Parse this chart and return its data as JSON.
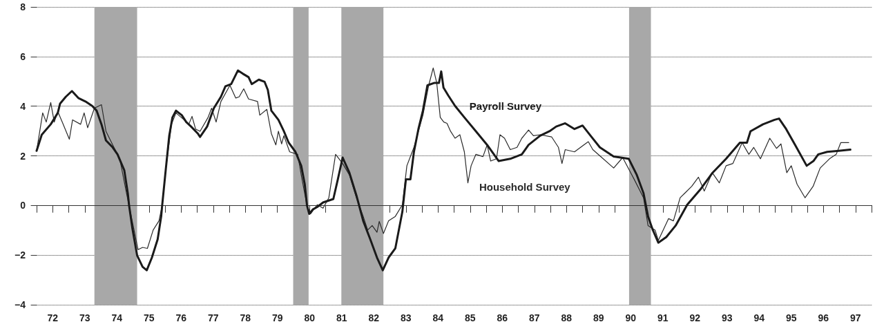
{
  "chart_data": {
    "type": "line",
    "xlim": [
      71.5,
      97.5
    ],
    "xticks": [
      {
        "value": 71.5,
        "label": null
      },
      72,
      {
        "value": 72.5,
        "label": null
      },
      73,
      {
        "value": 73.5,
        "label": null
      },
      74,
      {
        "value": 74.5,
        "label": null
      },
      75,
      {
        "value": 75.5,
        "label": null
      },
      76,
      {
        "value": 76.5,
        "label": null
      },
      77,
      {
        "value": 77.5,
        "label": null
      },
      78,
      {
        "value": 78.5,
        "label": null
      },
      79,
      {
        "value": 79.5,
        "label": null
      },
      80,
      {
        "value": 80.5,
        "label": null
      },
      81,
      {
        "value": 81.5,
        "label": null
      },
      82,
      {
        "value": 82.5,
        "label": null
      },
      83,
      {
        "value": 83.5,
        "label": null
      },
      84,
      {
        "value": 84.5,
        "label": null
      },
      85,
      {
        "value": 85.5,
        "label": null
      },
      86,
      {
        "value": 86.5,
        "label": null
      },
      87,
      {
        "value": 87.5,
        "label": null
      },
      88,
      {
        "value": 88.5,
        "label": null
      },
      89,
      {
        "value": 89.5,
        "label": null
      },
      90,
      {
        "value": 90.5,
        "label": null
      },
      91,
      {
        "value": 91.5,
        "label": null
      },
      92,
      {
        "value": 92.5,
        "label": null
      },
      93,
      {
        "value": 93.5,
        "label": null
      },
      94,
      {
        "value": 94.5,
        "label": null
      },
      95,
      {
        "value": 95.5,
        "label": null
      },
      96,
      {
        "value": 96.5,
        "label": null
      },
      97,
      {
        "value": 97.5,
        "label": null
      }
    ],
    "ylim": [
      -4,
      8
    ],
    "yticks": [
      -4,
      -2,
      0,
      2,
      4,
      6,
      8
    ],
    "grid": "y",
    "marker": "none",
    "series": [
      {
        "name": "Payroll Survey",
        "color": "#1a1a1a",
        "x": [
          71.5,
          71.66,
          71.94,
          72.16,
          72.23,
          72.41,
          72.6,
          72.8,
          73.02,
          73.23,
          73.37,
          73.52,
          73.66,
          73.87,
          74.02,
          74.23,
          74.34,
          74.38,
          74.48,
          74.63,
          74.8,
          74.93,
          75.09,
          75.27,
          75.38,
          75.41,
          75.52,
          75.63,
          75.73,
          75.84,
          76.02,
          76.16,
          76.31,
          76.52,
          76.59,
          76.81,
          77.02,
          77.24,
          77.38,
          77.56,
          77.77,
          77.92,
          78.1,
          78.2,
          78.42,
          78.6,
          78.7,
          78.81,
          79.03,
          79.2,
          79.35,
          79.56,
          79.74,
          79.85,
          79.92,
          79.99,
          80.1,
          80.24,
          80.42,
          80.53,
          80.74,
          80.88,
          81.03,
          81.24,
          81.46,
          81.67,
          81.89,
          82.1,
          82.28,
          82.46,
          82.67,
          82.89,
          83.0,
          83.14,
          83.25,
          83.39,
          83.53,
          83.67,
          83.89,
          84.03,
          84.1,
          84.17,
          84.32,
          84.53,
          84.82,
          85.18,
          85.53,
          85.89,
          86.25,
          86.61,
          86.82,
          87.18,
          87.47,
          87.68,
          87.96,
          88.25,
          88.5,
          88.75,
          89.04,
          89.47,
          89.94,
          90.19,
          90.4,
          90.54,
          90.69,
          90.86,
          91.11,
          91.4,
          91.76,
          92.19,
          92.55,
          92.97,
          93.4,
          93.62,
          93.73,
          94.12,
          94.48,
          94.62,
          94.84,
          95.12,
          95.48,
          95.69,
          95.84,
          96.12,
          96.48,
          96.84
        ],
        "values": [
          2.2,
          2.85,
          3.27,
          3.73,
          4.1,
          4.38,
          4.61,
          4.33,
          4.19,
          4.01,
          3.82,
          3.27,
          2.62,
          2.34,
          2.06,
          1.42,
          0.49,
          0,
          -0.9,
          -2.01,
          -2.47,
          -2.61,
          -2.1,
          -1.36,
          -0.44,
          0,
          1.42,
          2.81,
          3.55,
          3.82,
          3.64,
          3.36,
          3.18,
          2.9,
          2.76,
          3.18,
          3.92,
          4.38,
          4.8,
          4.89,
          5.44,
          5.31,
          5.17,
          4.89,
          5.07,
          4.98,
          4.66,
          3.82,
          3.45,
          2.99,
          2.53,
          2.16,
          1.6,
          0.86,
          0,
          -0.34,
          -0.16,
          -0.06,
          0.12,
          0.17,
          0.26,
          1.05,
          1.93,
          1.32,
          0.4,
          -0.62,
          -1.36,
          -2.1,
          -2.61,
          -2.1,
          -1.73,
          -0.25,
          1.05,
          1.05,
          2.16,
          3.08,
          3.82,
          4.84,
          4.94,
          4.94,
          5.4,
          4.75,
          4.43,
          4.01,
          3.55,
          2.99,
          2.44,
          1.79,
          1.88,
          2.06,
          2.44,
          2.81,
          2.99,
          3.18,
          3.31,
          3.08,
          3.22,
          2.81,
          2.34,
          1.97,
          1.88,
          1.23,
          0.49,
          -0.44,
          -0.99,
          -1.5,
          -1.27,
          -0.81,
          0.03,
          0.68,
          1.32,
          1.88,
          2.53,
          2.53,
          2.99,
          3.27,
          3.45,
          3.5,
          3.08,
          2.44,
          1.6,
          1.79,
          2.06,
          2.16,
          2.2,
          2.25
        ]
      },
      {
        "name": "Household Survey",
        "color": "#2a2a2a",
        "x": [
          71.5,
          71.69,
          71.8,
          71.94,
          72.05,
          72.16,
          72.3,
          72.52,
          72.62,
          72.87,
          72.98,
          73.09,
          73.3,
          73.52,
          73.66,
          73.87,
          74.09,
          74.3,
          74.52,
          74.66,
          74.8,
          74.95,
          75.13,
          75.31,
          75.41,
          75.52,
          75.7,
          75.84,
          76.09,
          76.24,
          76.34,
          76.45,
          76.59,
          76.84,
          76.95,
          77.09,
          77.24,
          77.52,
          77.7,
          77.81,
          77.95,
          78.1,
          78.38,
          78.45,
          78.67,
          78.81,
          78.95,
          79.03,
          79.13,
          79.2,
          79.38,
          79.63,
          79.74,
          79.92,
          80.03,
          80.24,
          80.42,
          80.6,
          80.81,
          81.03,
          81.24,
          81.46,
          81.67,
          81.81,
          81.95,
          82.1,
          82.17,
          82.3,
          82.46,
          82.67,
          82.89,
          83.03,
          83.25,
          83.53,
          83.71,
          83.85,
          83.96,
          84.07,
          84.18,
          84.28,
          84.39,
          84.53,
          84.68,
          84.82,
          84.93,
          85.03,
          85.18,
          85.4,
          85.53,
          85.64,
          85.82,
          85.93,
          86.07,
          86.25,
          86.46,
          86.61,
          86.82,
          86.97,
          87.18,
          87.54,
          87.75,
          87.86,
          87.96,
          88.25,
          88.54,
          88.68,
          88.82,
          89.04,
          89.47,
          89.75,
          90.11,
          90.4,
          90.54,
          90.76,
          90.86,
          91.18,
          91.33,
          91.54,
          91.68,
          91.9,
          92.11,
          92.29,
          92.54,
          92.76,
          92.97,
          93.18,
          93.47,
          93.68,
          93.83,
          94.04,
          94.33,
          94.54,
          94.68,
          94.86,
          95.0,
          95.18,
          95.43,
          95.68,
          95.9,
          96.19,
          96.4,
          96.54,
          96.79
        ],
        "values": [
          2.2,
          3.73,
          3.36,
          4.15,
          3.36,
          3.78,
          3.36,
          2.67,
          3.45,
          3.27,
          3.73,
          3.13,
          3.92,
          4.06,
          2.99,
          2.44,
          1.88,
          0.49,
          -0.9,
          -1.78,
          -1.69,
          -1.73,
          -0.99,
          -0.62,
          0,
          1.42,
          3.27,
          3.73,
          3.45,
          3.27,
          3.59,
          3.08,
          2.99,
          3.55,
          3.92,
          3.36,
          4.19,
          4.84,
          4.33,
          4.38,
          4.7,
          4.29,
          4.19,
          3.64,
          3.87,
          2.9,
          2.44,
          2.99,
          2.48,
          2.81,
          2.16,
          2.06,
          1.23,
          0,
          -0.34,
          0.03,
          -0.11,
          0.31,
          2.06,
          1.69,
          1.23,
          0.31,
          -0.44,
          -0.99,
          -0.81,
          -1.08,
          -0.64,
          -1.13,
          -0.62,
          -0.44,
          0.03,
          1.6,
          2.34,
          3.64,
          4.84,
          5.54,
          4.94,
          3.55,
          3.36,
          3.31,
          2.99,
          2.71,
          2.85,
          2.16,
          0.91,
          1.6,
          2.06,
          1.97,
          2.44,
          1.79,
          1.88,
          2.85,
          2.71,
          2.25,
          2.34,
          2.71,
          3.04,
          2.81,
          2.85,
          2.76,
          2.34,
          1.69,
          2.25,
          2.16,
          2.44,
          2.57,
          2.25,
          2.0,
          1.51,
          1.93,
          1.05,
          0.31,
          -0.81,
          -0.99,
          -1.41,
          -0.53,
          -0.62,
          0.31,
          0.49,
          0.77,
          1.14,
          0.58,
          1.32,
          0.91,
          1.6,
          1.69,
          2.53,
          2.06,
          2.34,
          1.88,
          2.71,
          2.3,
          2.48,
          1.32,
          1.6,
          0.86,
          0.31,
          0.77,
          1.51,
          1.88,
          2.06,
          2.53,
          2.53
        ]
      }
    ],
    "ref_lines": [
      {
        "axis": "y",
        "value": 0,
        "color": "#333333",
        "line_style": "solid"
      }
    ],
    "bands": [
      {
        "axis": "x",
        "from": 73.3,
        "to": 74.63,
        "color": "#a8a8a8"
      },
      {
        "axis": "x",
        "from": 79.49,
        "to": 79.97,
        "color": "#a8a8a8"
      },
      {
        "axis": "x",
        "from": 80.99,
        "to": 82.3,
        "color": "#a8a8a8"
      },
      {
        "axis": "x",
        "from": 89.95,
        "to": 90.63,
        "color": "#a8a8a8"
      }
    ]
  }
}
